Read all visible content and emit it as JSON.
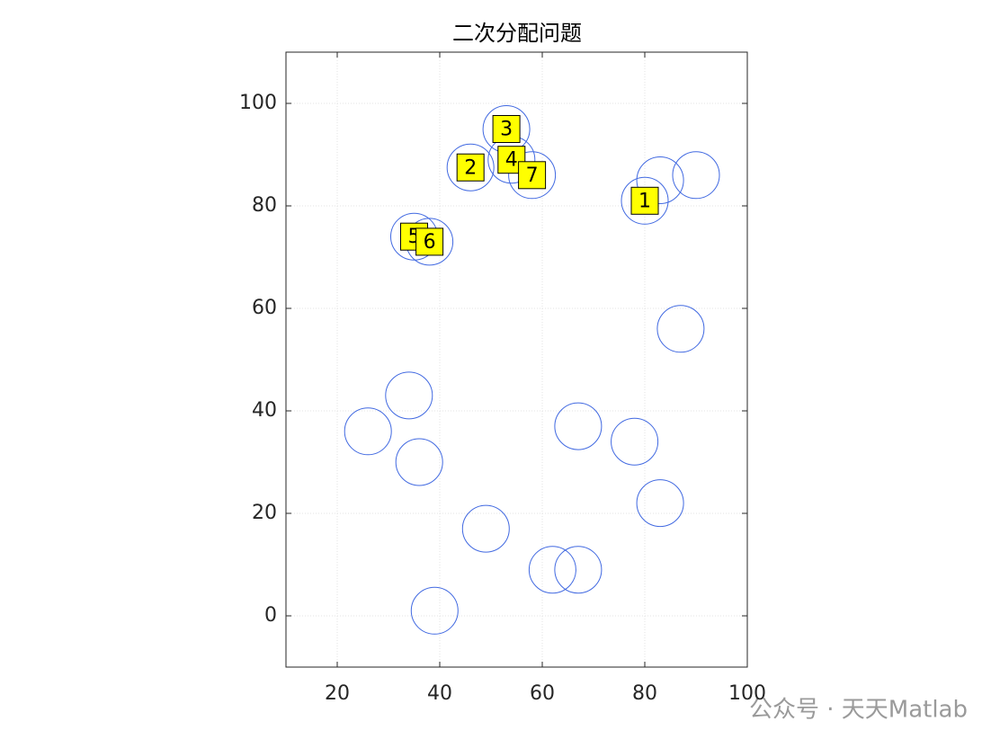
{
  "chart_data": {
    "type": "scatter",
    "title": "二次分配问题",
    "xlim": [
      10,
      100
    ],
    "ylim": [
      -10,
      110
    ],
    "xticks": [
      20,
      40,
      60,
      80,
      100
    ],
    "yticks": [
      0,
      20,
      40,
      60,
      80,
      100
    ],
    "grid": true,
    "series": [
      {
        "color": "#4169e1",
        "x": [
          80,
          46,
          53,
          54,
          35,
          38,
          58
        ],
        "y": [
          81,
          87.5,
          95,
          89,
          74,
          73,
          86
        ],
        "point_labels": [
          "1",
          "2",
          "3",
          "4",
          "5",
          "6",
          "7"
        ],
        "label_color": "#ffff00"
      },
      {
        "color": "#4169e1",
        "x": [
          83,
          90,
          87,
          34,
          26,
          36,
          67,
          78,
          83,
          49,
          62,
          67,
          39
        ],
        "y": [
          85,
          86,
          56,
          43,
          36,
          30,
          37,
          34,
          22,
          17,
          9,
          9,
          1
        ]
      }
    ]
  },
  "watermark": "公众号 · 天天Matlab"
}
